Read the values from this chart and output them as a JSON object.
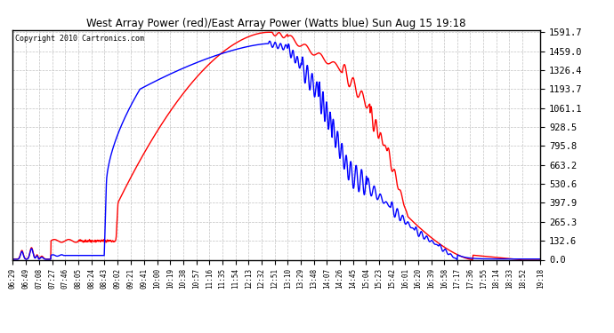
{
  "title": "West Array Power (red)/East Array Power (Watts blue) Sun Aug 15 19:18",
  "copyright": "Copyright 2010 Cartronics.com",
  "background_color": "#ffffff",
  "plot_bg_color": "#ffffff",
  "grid_color": "#bbbbbb",
  "y_ticks": [
    0.0,
    132.6,
    265.3,
    397.9,
    530.6,
    663.2,
    795.8,
    928.5,
    1061.1,
    1193.7,
    1326.4,
    1459.0,
    1591.7
  ],
  "x_labels": [
    "06:29",
    "06:49",
    "07:08",
    "07:27",
    "07:46",
    "08:05",
    "08:24",
    "08:43",
    "09:02",
    "09:21",
    "09:41",
    "10:00",
    "10:19",
    "10:38",
    "10:57",
    "11:16",
    "11:35",
    "11:54",
    "12:13",
    "12:32",
    "12:51",
    "13:10",
    "13:29",
    "13:48",
    "14:07",
    "14:26",
    "14:45",
    "15:04",
    "15:23",
    "15:42",
    "16:01",
    "16:20",
    "16:39",
    "16:58",
    "17:17",
    "17:36",
    "17:55",
    "18:14",
    "18:33",
    "18:52",
    "19:18"
  ],
  "red_color": "#ff0000",
  "blue_color": "#0000ff",
  "line_width": 1.0,
  "ymax": 1591.7,
  "ymin": 0.0
}
